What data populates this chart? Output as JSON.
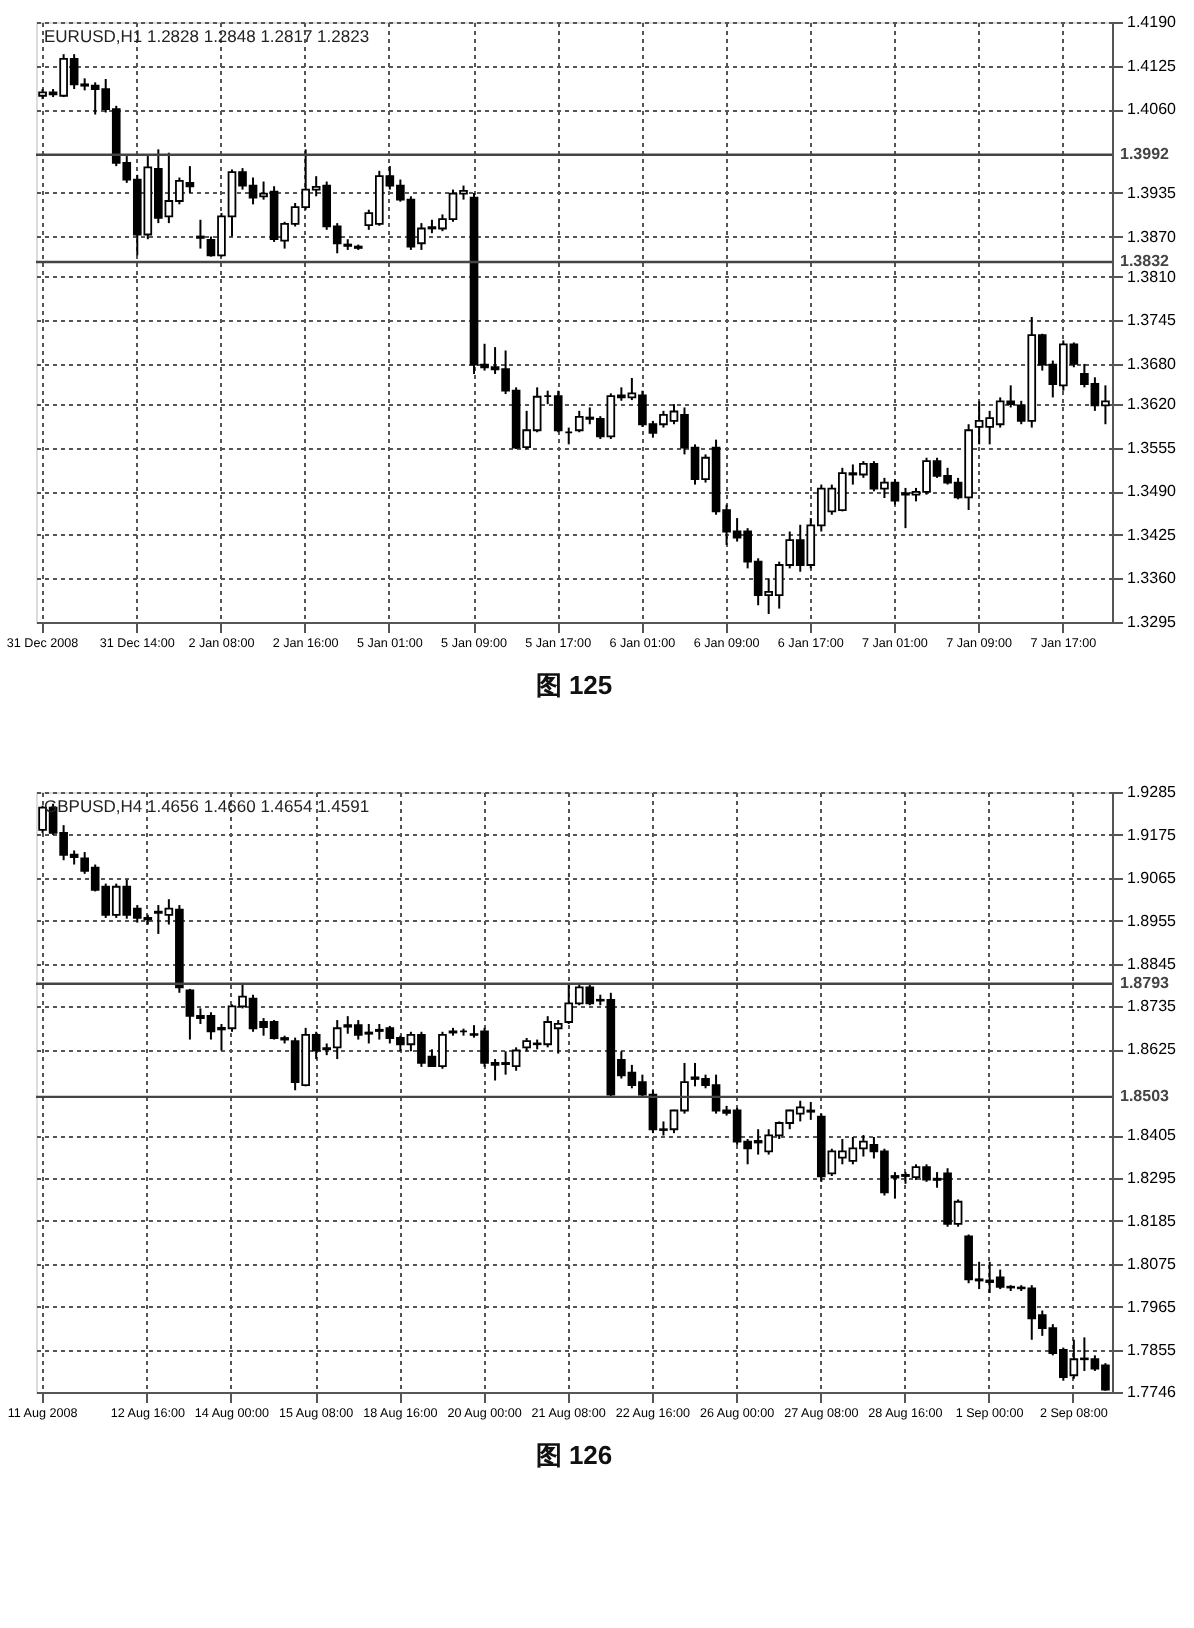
{
  "chart_data": [
    {
      "type": "candlestick",
      "title": "EURUSD,H1  1.2828 1.2848 1.2817 1.2823",
      "color": "#000000",
      "grid": true,
      "categories": [
        "31 Dec 2008",
        null,
        null,
        null,
        null,
        null,
        null,
        null,
        null,
        "31 Dec 14:00",
        null,
        null,
        null,
        null,
        null,
        null,
        null,
        "2 Jan 08:00",
        null,
        null,
        null,
        null,
        null,
        null,
        null,
        "2 Jan 16:00",
        null,
        null,
        null,
        null,
        null,
        null,
        null,
        "5 Jan 01:00",
        null,
        null,
        null,
        null,
        null,
        null,
        null,
        "5 Jan 09:00",
        null,
        null,
        null,
        null,
        null,
        null,
        null,
        "5 Jan 17:00",
        null,
        null,
        null,
        null,
        null,
        null,
        null,
        "6 Jan 01:00",
        null,
        null,
        null,
        null,
        null,
        null,
        null,
        "6 Jan 09:00",
        null,
        null,
        null,
        null,
        null,
        null,
        null,
        "6 Jan 17:00",
        null,
        null,
        null,
        null,
        null,
        null,
        null,
        "7 Jan 01:00",
        null,
        null,
        null,
        null,
        null,
        null,
        null,
        "7 Jan 09:00",
        null,
        null,
        null,
        null,
        null,
        null,
        null,
        "7 Jan 17:00",
        null,
        null,
        null,
        null
      ],
      "ohlc": [
        [
          1.408,
          1.409,
          1.4075,
          1.4085
        ],
        [
          1.4085,
          1.409,
          1.4078,
          1.4082
        ],
        [
          1.408,
          1.4142,
          1.4078,
          1.4135
        ],
        [
          1.4135,
          1.4142,
          1.409,
          1.4097
        ],
        [
          1.4097,
          1.4106,
          1.4088,
          1.4095
        ],
        [
          1.4095,
          1.41,
          1.4052,
          1.409
        ],
        [
          1.409,
          1.4105,
          1.4055,
          1.406
        ],
        [
          1.406,
          1.4065,
          1.3975,
          1.398
        ],
        [
          1.398,
          1.399,
          1.395,
          1.3955
        ],
        [
          1.3955,
          1.3962,
          1.3842,
          1.3873
        ],
        [
          1.3873,
          1.399,
          1.3866,
          1.3973
        ],
        [
          1.3971,
          1.4,
          1.389,
          1.3898
        ],
        [
          1.39,
          1.3995,
          1.389,
          1.3923
        ],
        [
          1.3923,
          1.3958,
          1.3918,
          1.3953
        ],
        [
          1.395,
          1.3975,
          1.3935,
          1.3945
        ],
        [
          1.387,
          1.3895,
          1.3852,
          1.3868
        ],
        [
          1.3865,
          1.387,
          1.384,
          1.3842
        ],
        [
          1.3842,
          1.3905,
          1.384,
          1.39
        ],
        [
          1.39,
          1.397,
          1.387,
          1.3966
        ],
        [
          1.3966,
          1.3972,
          1.394,
          1.3946
        ],
        [
          1.3946,
          1.3958,
          1.3918,
          1.3928
        ],
        [
          1.393,
          1.3952,
          1.3925,
          1.3934
        ],
        [
          1.3937,
          1.3945,
          1.3862,
          1.3866
        ],
        [
          1.3864,
          1.3892,
          1.3852,
          1.3889
        ],
        [
          1.3889,
          1.392,
          1.3885,
          1.3914
        ],
        [
          1.3914,
          1.4,
          1.391,
          1.394
        ],
        [
          1.394,
          1.396,
          1.393,
          1.3944
        ],
        [
          1.3946,
          1.3952,
          1.388,
          1.3885
        ],
        [
          1.3885,
          1.389,
          1.3845,
          1.386
        ],
        [
          1.3858,
          1.3866,
          1.385,
          1.3856
        ],
        [
          1.3855,
          1.3858,
          1.385,
          1.3853
        ],
        [
          1.3887,
          1.391,
          1.388,
          1.3905
        ],
        [
          1.3889,
          1.3968,
          1.3886,
          1.396
        ],
        [
          1.396,
          1.3975,
          1.394,
          1.3946
        ],
        [
          1.3946,
          1.3955,
          1.3922,
          1.3925
        ],
        [
          1.3925,
          1.393,
          1.385,
          1.3855
        ],
        [
          1.386,
          1.389,
          1.385,
          1.3882
        ],
        [
          1.3882,
          1.3895,
          1.3875,
          1.3884
        ],
        [
          1.3882,
          1.3903,
          1.3878,
          1.3896
        ],
        [
          1.3896,
          1.394,
          1.3892,
          1.3934
        ],
        [
          1.3934,
          1.3946,
          1.3925,
          1.3938
        ],
        [
          1.3928,
          1.3935,
          1.3665,
          1.3679
        ],
        [
          1.3679,
          1.371,
          1.367,
          1.3675
        ],
        [
          1.3675,
          1.3705,
          1.3665,
          1.3672
        ],
        [
          1.3672,
          1.37,
          1.3635,
          1.364
        ],
        [
          1.364,
          1.3645,
          1.3553,
          1.3555
        ],
        [
          1.3556,
          1.361,
          1.3553,
          1.3581
        ],
        [
          1.3581,
          1.3645,
          1.3578,
          1.3631
        ],
        [
          1.3632,
          1.364,
          1.362,
          1.3632
        ],
        [
          1.3632,
          1.364,
          1.3578,
          1.3581
        ],
        [
          1.3578,
          1.3585,
          1.356,
          1.3578
        ],
        [
          1.3581,
          1.361,
          1.3578,
          1.3601
        ],
        [
          1.36,
          1.3615,
          1.359,
          1.3598
        ],
        [
          1.3598,
          1.3602,
          1.3568,
          1.3572
        ],
        [
          1.3572,
          1.3636,
          1.3568,
          1.3632
        ],
        [
          1.3633,
          1.3645,
          1.3625,
          1.363
        ],
        [
          1.363,
          1.3659,
          1.3626,
          1.3636
        ],
        [
          1.3633,
          1.364,
          1.3586,
          1.359
        ],
        [
          1.359,
          1.3595,
          1.357,
          1.3577
        ],
        [
          1.359,
          1.361,
          1.3585,
          1.3604
        ],
        [
          1.3595,
          1.362,
          1.359,
          1.3609
        ],
        [
          1.3604,
          1.3615,
          1.3545,
          1.3555
        ],
        [
          1.3555,
          1.356,
          1.35,
          1.3508
        ],
        [
          1.3508,
          1.3545,
          1.3503,
          1.354
        ],
        [
          1.3555,
          1.3567,
          1.3455,
          1.346
        ],
        [
          1.3462,
          1.347,
          1.341,
          1.343
        ],
        [
          1.343,
          1.345,
          1.3415,
          1.3421
        ],
        [
          1.343,
          1.3435,
          1.3375,
          1.3385
        ],
        [
          1.3385,
          1.339,
          1.332,
          1.3335
        ],
        [
          1.3335,
          1.336,
          1.3307,
          1.334
        ],
        [
          1.3335,
          1.3385,
          1.3315,
          1.338
        ],
        [
          1.338,
          1.343,
          1.3375,
          1.3417
        ],
        [
          1.3417,
          1.344,
          1.337,
          1.338
        ],
        [
          1.338,
          1.345,
          1.3375,
          1.3439
        ],
        [
          1.3439,
          1.35,
          1.343,
          1.3494
        ],
        [
          1.346,
          1.35,
          1.3455,
          1.3494
        ],
        [
          1.3462,
          1.3525,
          1.346,
          1.3517
        ],
        [
          1.3517,
          1.353,
          1.35,
          1.3515
        ],
        [
          1.3515,
          1.3535,
          1.351,
          1.3531
        ],
        [
          1.3531,
          1.3535,
          1.349,
          1.3494
        ],
        [
          1.3494,
          1.351,
          1.348,
          1.3503
        ],
        [
          1.3503,
          1.3508,
          1.347,
          1.3476
        ],
        [
          1.3487,
          1.3495,
          1.3435,
          1.3485
        ],
        [
          1.3485,
          1.3495,
          1.3475,
          1.3489
        ],
        [
          1.3489,
          1.354,
          1.3485,
          1.3535
        ],
        [
          1.3535,
          1.354,
          1.351,
          1.3513
        ],
        [
          1.3513,
          1.3525,
          1.35,
          1.3503
        ],
        [
          1.3503,
          1.351,
          1.3478,
          1.3481
        ],
        [
          1.3481,
          1.359,
          1.3462,
          1.3581
        ],
        [
          1.3586,
          1.3624,
          1.356,
          1.3595
        ],
        [
          1.3586,
          1.361,
          1.356,
          1.3599
        ],
        [
          1.359,
          1.363,
          1.3585,
          1.3624
        ],
        [
          1.3624,
          1.3648,
          1.3615,
          1.362
        ],
        [
          1.3618,
          1.3625,
          1.359,
          1.3595
        ],
        [
          1.3595,
          1.375,
          1.3585,
          1.3723
        ],
        [
          1.3723,
          1.3725,
          1.367,
          1.3679
        ],
        [
          1.3679,
          1.3685,
          1.363,
          1.365
        ],
        [
          1.3648,
          1.3715,
          1.364,
          1.3709
        ],
        [
          1.3709,
          1.3712,
          1.3675,
          1.368
        ],
        [
          1.3665,
          1.368,
          1.3645,
          1.365
        ],
        [
          1.365,
          1.366,
          1.361,
          1.3618
        ],
        [
          1.3618,
          1.3648,
          1.359,
          1.3624
        ]
      ],
      "ylim": [
        1.3295,
        1.419
      ],
      "yticks": [
        {
          "value": 1.419,
          "label": "1.4190"
        },
        1.4125,
        {
          "value": 1.406,
          "label": "1.4060"
        },
        1.3935,
        {
          "value": 1.387,
          "label": "1.3870"
        },
        {
          "value": 1.381,
          "label": "1.3810"
        },
        1.3745,
        {
          "value": 1.368,
          "label": "1.3680"
        },
        {
          "value": 1.362,
          "label": "1.3620"
        },
        1.3555,
        {
          "value": 1.349,
          "label": "1.3490"
        },
        1.3425,
        {
          "value": 1.336,
          "label": "1.3360"
        },
        1.3295
      ],
      "ref_lines": [
        {
          "axis": "y",
          "value": 1.3992,
          "label": "1.3992",
          "color": "#444444"
        },
        {
          "axis": "y",
          "value": 1.3832,
          "label": "1.3832",
          "color": "#444444"
        }
      ],
      "annotations": [
        "图 125"
      ]
    },
    {
      "type": "candlestick",
      "title": "GBPUSD,H4  1.4656 1.4660 1.4654 1.4591",
      "color": "#000000",
      "grid": true,
      "categories": [
        "11 Aug 2008",
        null,
        null,
        null,
        null,
        null,
        null,
        null,
        null,
        null,
        "12 Aug 16:00",
        null,
        null,
        null,
        null,
        null,
        null,
        null,
        "14 Aug 00:00",
        null,
        null,
        null,
        null,
        null,
        null,
        null,
        "15 Aug 08:00",
        null,
        null,
        null,
        null,
        null,
        null,
        null,
        "18 Aug 16:00",
        null,
        null,
        null,
        null,
        null,
        null,
        null,
        "20 Aug 00:00",
        null,
        null,
        null,
        null,
        null,
        null,
        null,
        "21 Aug 08:00",
        null,
        null,
        null,
        null,
        null,
        null,
        null,
        "22 Aug 16:00",
        null,
        null,
        null,
        null,
        null,
        null,
        null,
        "26 Aug 00:00",
        null,
        null,
        null,
        null,
        null,
        null,
        null,
        "27 Aug 08:00",
        null,
        null,
        null,
        null,
        null,
        null,
        null,
        "28 Aug 16:00",
        null,
        null,
        null,
        null,
        null,
        null,
        null,
        "1 Sep 00:00",
        null,
        null,
        null,
        null,
        null,
        null,
        null,
        "2 Sep 08:00",
        null,
        null,
        null
      ],
      "ohlc": [
        [
          1.9188,
          1.925,
          1.918,
          1.9245
        ],
        [
          1.9245,
          1.9255,
          1.9175,
          1.918
        ],
        [
          1.918,
          1.92,
          1.911,
          1.9124
        ],
        [
          1.9124,
          1.9135,
          1.9099,
          1.9118
        ],
        [
          1.9115,
          1.9131,
          1.9075,
          1.9083
        ],
        [
          1.9091,
          1.9099,
          1.903,
          1.9034
        ],
        [
          1.9042,
          1.905,
          1.8962,
          1.897
        ],
        [
          1.897,
          1.905,
          1.8962,
          1.9042
        ],
        [
          1.9042,
          1.906,
          1.896,
          1.897
        ],
        [
          1.8986,
          1.8995,
          1.895,
          1.8962
        ],
        [
          1.8962,
          1.897,
          1.8945,
          1.8958
        ],
        [
          1.8975,
          1.8995,
          1.8921,
          1.8978
        ],
        [
          1.897,
          1.901,
          1.8945,
          1.8986
        ],
        [
          1.8983,
          1.8995,
          1.877,
          1.8784
        ],
        [
          1.8776,
          1.878,
          1.865,
          1.8711
        ],
        [
          1.8711,
          1.873,
          1.869,
          1.8705
        ],
        [
          1.8711,
          1.872,
          1.865,
          1.8671
        ],
        [
          1.868,
          1.869,
          1.8622,
          1.8676
        ],
        [
          1.8679,
          1.874,
          1.867,
          1.8735
        ],
        [
          1.8735,
          1.8792,
          1.873,
          1.876
        ],
        [
          1.8755,
          1.8765,
          1.867,
          1.8679
        ],
        [
          1.8695,
          1.8705,
          1.866,
          1.8682
        ],
        [
          1.8695,
          1.87,
          1.865,
          1.8654
        ],
        [
          1.8654,
          1.866,
          1.864,
          1.865
        ],
        [
          1.8646,
          1.8655,
          1.852,
          1.8541
        ],
        [
          1.8533,
          1.868,
          1.853,
          1.8662
        ],
        [
          1.8662,
          1.867,
          1.86,
          1.8622
        ],
        [
          1.8625,
          1.864,
          1.861,
          1.8628
        ],
        [
          1.863,
          1.87,
          1.86,
          1.8679
        ],
        [
          1.8687,
          1.871,
          1.8665,
          1.8683
        ],
        [
          1.8687,
          1.87,
          1.865,
          1.8662
        ],
        [
          1.8665,
          1.869,
          1.864,
          1.8668
        ],
        [
          1.8675,
          1.869,
          1.865,
          1.8672
        ],
        [
          1.8679,
          1.8685,
          1.864,
          1.8654
        ],
        [
          1.8654,
          1.866,
          1.862,
          1.8638
        ],
        [
          1.8638,
          1.867,
          1.862,
          1.8662
        ],
        [
          1.8662,
          1.867,
          1.858,
          1.859
        ],
        [
          1.8606,
          1.8625,
          1.858,
          1.8582
        ],
        [
          1.8582,
          1.867,
          1.8575,
          1.8662
        ],
        [
          1.8671,
          1.868,
          1.866,
          1.8668
        ],
        [
          1.8671,
          1.8678,
          1.866,
          1.8671
        ],
        [
          1.8662,
          1.8687,
          1.8655,
          1.8664
        ],
        [
          1.8671,
          1.868,
          1.858,
          1.859
        ],
        [
          1.859,
          1.86,
          1.8545,
          1.8585
        ],
        [
          1.859,
          1.862,
          1.856,
          1.8587
        ],
        [
          1.8582,
          1.863,
          1.857,
          1.8622
        ],
        [
          1.863,
          1.8654,
          1.862,
          1.8646
        ],
        [
          1.8638,
          1.865,
          1.8625,
          1.864
        ],
        [
          1.8638,
          1.871,
          1.863,
          1.8695
        ],
        [
          1.8679,
          1.87,
          1.8614,
          1.869
        ],
        [
          1.8695,
          1.8792,
          1.869,
          1.8743
        ],
        [
          1.8743,
          1.879,
          1.8738,
          1.8784
        ],
        [
          1.8784,
          1.879,
          1.8738,
          1.8743
        ],
        [
          1.875,
          1.8765,
          1.8738,
          1.8752
        ],
        [
          1.8752,
          1.877,
          1.8505,
          1.8509
        ],
        [
          1.8598,
          1.862,
          1.855,
          1.8558
        ],
        [
          1.8565,
          1.8585,
          1.8525,
          1.8533
        ],
        [
          1.8541,
          1.856,
          1.85,
          1.8509
        ],
        [
          1.8509,
          1.852,
          1.841,
          1.842
        ],
        [
          1.842,
          1.844,
          1.8404,
          1.8418
        ],
        [
          1.842,
          1.847,
          1.841,
          1.8468
        ],
        [
          1.8468,
          1.859,
          1.846,
          1.8541
        ],
        [
          1.8549,
          1.859,
          1.853,
          1.8553
        ],
        [
          1.8549,
          1.856,
          1.8525,
          1.8533
        ],
        [
          1.8533,
          1.856,
          1.846,
          1.8468
        ],
        [
          1.8468,
          1.848,
          1.8455,
          1.8462
        ],
        [
          1.8468,
          1.8475,
          1.838,
          1.8388
        ],
        [
          1.8388,
          1.8395,
          1.833,
          1.8371
        ],
        [
          1.839,
          1.842,
          1.8355,
          1.8386
        ],
        [
          1.8363,
          1.842,
          1.8355,
          1.8404
        ],
        [
          1.8404,
          1.844,
          1.8395,
          1.8436
        ],
        [
          1.8436,
          1.847,
          1.842,
          1.8468
        ],
        [
          1.846,
          1.8493,
          1.844,
          1.8476
        ],
        [
          1.8468,
          1.849,
          1.8444,
          1.8465
        ],
        [
          1.8452,
          1.846,
          1.8285,
          1.8299
        ],
        [
          1.8307,
          1.837,
          1.83,
          1.8363
        ],
        [
          1.8347,
          1.8395,
          1.833,
          1.8363
        ],
        [
          1.8339,
          1.84,
          1.833,
          1.8371
        ],
        [
          1.8371,
          1.8405,
          1.835,
          1.8388
        ],
        [
          1.838,
          1.84,
          1.8345,
          1.8363
        ],
        [
          1.8363,
          1.837,
          1.825,
          1.8258
        ],
        [
          1.83,
          1.831,
          1.8242,
          1.8296
        ],
        [
          1.83,
          1.831,
          1.828,
          1.8303
        ],
        [
          1.8297,
          1.833,
          1.829,
          1.8323
        ],
        [
          1.8323,
          1.833,
          1.8285,
          1.8291
        ],
        [
          1.8293,
          1.831,
          1.827,
          1.829
        ],
        [
          1.8307,
          1.832,
          1.817,
          1.8177
        ],
        [
          1.8177,
          1.824,
          1.817,
          1.8234
        ],
        [
          1.8145,
          1.815,
          1.8025,
          1.8035
        ],
        [
          1.8035,
          1.808,
          1.801,
          1.8032
        ],
        [
          1.8032,
          1.808,
          1.8,
          1.8028
        ],
        [
          1.804,
          1.806,
          1.801,
          1.8016
        ],
        [
          1.8016,
          1.802,
          1.8005,
          1.8014
        ],
        [
          1.8014,
          1.802,
          1.8005,
          1.8012
        ],
        [
          1.8012,
          1.802,
          1.788,
          1.7935
        ],
        [
          1.7943,
          1.7955,
          1.789,
          1.791
        ],
        [
          1.791,
          1.792,
          1.784,
          1.7846
        ],
        [
          1.7854,
          1.786,
          1.7775,
          1.7784
        ],
        [
          1.7789,
          1.788,
          1.778,
          1.783
        ],
        [
          1.783,
          1.7886,
          1.78,
          1.7832
        ],
        [
          1.783,
          1.784,
          1.78,
          1.7806
        ],
        [
          1.7814,
          1.782,
          1.7749,
          1.7752
        ]
      ],
      "ylim": [
        1.7746,
        1.9285
      ],
      "yticks": [
        1.9285,
        1.9175,
        1.9065,
        1.8955,
        1.8845,
        1.8735,
        1.8625,
        1.8405,
        1.8295,
        1.8185,
        1.8075,
        1.7965,
        1.7855,
        1.7746
      ],
      "ref_lines": [
        {
          "axis": "y",
          "value": 1.8793,
          "label": "1.8793",
          "color": "#444444"
        },
        {
          "axis": "y",
          "value": 1.8503,
          "label": "1.8503",
          "color": "#444444"
        }
      ],
      "annotations": [
        "图 126"
      ]
    }
  ]
}
